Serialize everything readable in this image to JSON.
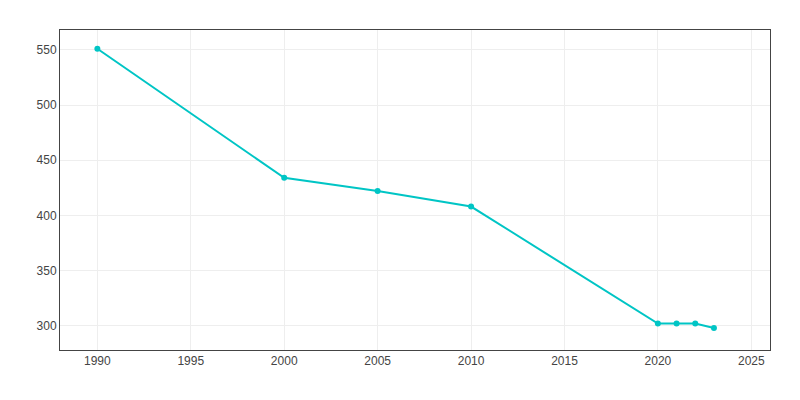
{
  "chart_data": {
    "type": "line",
    "x": [
      1990,
      2000,
      2005,
      2010,
      2020,
      2021,
      2022,
      2023
    ],
    "values": [
      551,
      434,
      422,
      408,
      302,
      302,
      302,
      298
    ],
    "color": "#00C5C5",
    "marker": "circle",
    "xlim": [
      1988,
      2026
    ],
    "ylim": [
      278,
      568
    ],
    "xticks": [
      1990,
      1995,
      2000,
      2005,
      2010,
      2015,
      2020,
      2025
    ],
    "yticks": [
      300,
      350,
      400,
      450,
      500,
      550
    ],
    "grid": true
  }
}
